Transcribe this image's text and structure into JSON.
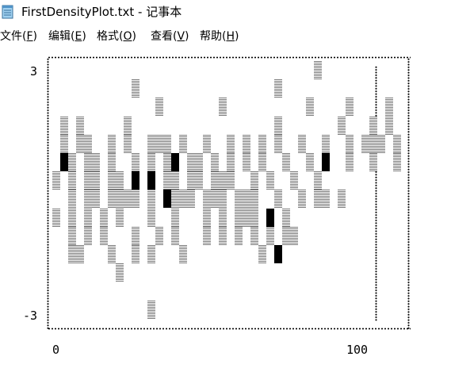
{
  "window": {
    "title": "FirstDensityPlot.txt - 记事本",
    "icon": "notepad-icon"
  },
  "menu": [
    {
      "name": "menu-file",
      "text": "文件(",
      "accel": "F",
      "tail": ")"
    },
    {
      "name": "menu-edit",
      "text": "编辑(",
      "accel": "E",
      "tail": ")"
    },
    {
      "name": "menu-format",
      "text": "格式(",
      "accel": "O",
      "tail": ")"
    },
    {
      "name": "menu-view",
      "text": "查看(",
      "accel": "V",
      "tail": ")"
    },
    {
      "name": "menu-help",
      "text": "帮助(",
      "accel": "H",
      "tail": ")"
    }
  ],
  "plot": {
    "y_top_label": "3",
    "y_bottom_label": "-3",
    "x_left_label": "0",
    "x_right_label": "100",
    "rows": [
      "                                 ░                ",
      "          ░                 ░                     ",
      "             ░       ░          ░    ░    ░        ",
      " ░ ░     ░                  ░       ░   ░ ░      ",
      " ░ ░░  ░ ░  ░░░ ░  ░  ░ ░ ░ ░  ░  ░  ░ ░░░ ░",
      " █░ ░░ ░  ░ ░ ░█ ░░ ░ ░ ░ ░  ░  ░ █  ░  ░  ░ ",
      "░ ░ ░░ ░░ █ █ ░░ ░░ ░░░  ░ ░  ░  ░",
      "  ░ ░░ ░░░░ ░ █░░░ ░░░ ░░░  ░  ░ ░░ ░",
      "░ ░ ░ ░ ░   ░  ░   ░ ░ ░░░ █ ░",
      "  ░ ░ ░   ░  ░ ░   ░ ░ ░ ░ ░ ░░",
      "  ░░   ░  ░ ░   ░         ░ █",
      "        ░",
      "",
      "            ░"
    ]
  }
}
